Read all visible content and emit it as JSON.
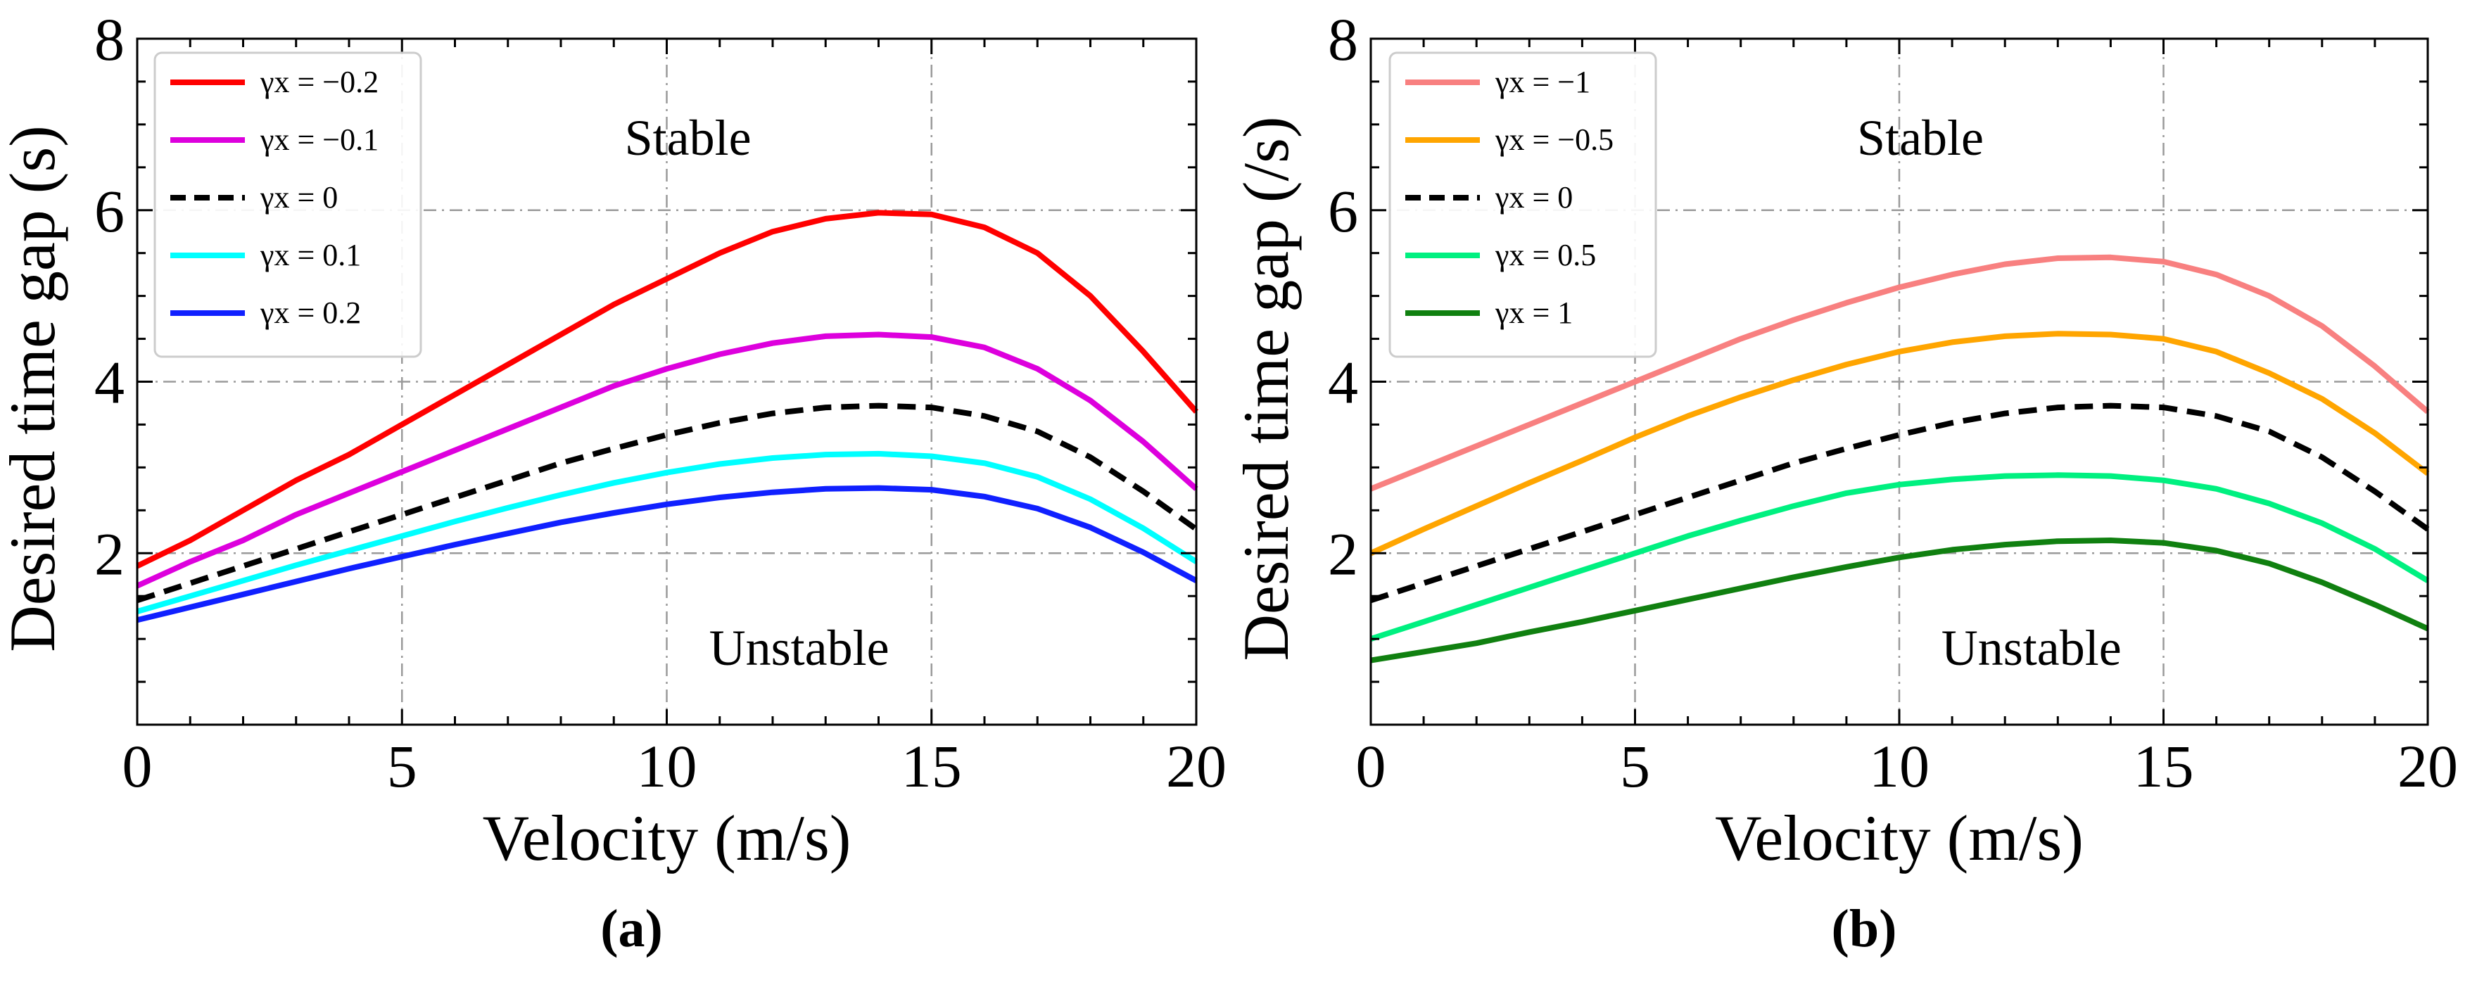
{
  "chart_data": [
    {
      "type": "line",
      "panel_label": "(a)",
      "panel_letter": "a",
      "xlabel": "Velocity (m/s)",
      "ylabel": "Desired time gap (s)",
      "xlim": [
        0,
        20
      ],
      "ylim": [
        0,
        8
      ],
      "xticks": [
        0,
        5,
        10,
        15,
        20
      ],
      "yticks": [
        2,
        4,
        6,
        8
      ],
      "grid": true,
      "legend_position": "top-left",
      "regions": {
        "stable": "Stable",
        "unstable": "Unstable"
      },
      "x": [
        0,
        1,
        2,
        3,
        4,
        5,
        6,
        7,
        8,
        9,
        10,
        11,
        12,
        13,
        14,
        15,
        16,
        17,
        18,
        19,
        20
      ],
      "series": [
        {
          "name": "γx = −0.2",
          "color": "#ff0000",
          "dash": "solid",
          "values": [
            1.85,
            2.15,
            2.5,
            2.85,
            3.15,
            3.5,
            3.85,
            4.2,
            4.55,
            4.9,
            5.2,
            5.5,
            5.75,
            5.9,
            5.97,
            5.95,
            5.8,
            5.5,
            5.0,
            4.35,
            3.65
          ]
        },
        {
          "name": "γx = −0.1",
          "color": "#dd00dd",
          "dash": "solid",
          "values": [
            1.62,
            1.9,
            2.15,
            2.45,
            2.7,
            2.95,
            3.2,
            3.45,
            3.7,
            3.95,
            4.15,
            4.32,
            4.45,
            4.53,
            4.55,
            4.52,
            4.4,
            4.15,
            3.78,
            3.3,
            2.75
          ]
        },
        {
          "name": "γx = 0",
          "color": "#000000",
          "dash": "dashed",
          "values": [
            1.45,
            1.65,
            1.85,
            2.05,
            2.25,
            2.45,
            2.65,
            2.85,
            3.05,
            3.22,
            3.38,
            3.52,
            3.63,
            3.7,
            3.72,
            3.7,
            3.6,
            3.42,
            3.12,
            2.72,
            2.28
          ]
        },
        {
          "name": "γx = 0.1",
          "color": "#00ffff",
          "dash": "solid",
          "values": [
            1.32,
            1.5,
            1.68,
            1.86,
            2.03,
            2.2,
            2.37,
            2.53,
            2.68,
            2.82,
            2.94,
            3.04,
            3.11,
            3.15,
            3.16,
            3.13,
            3.05,
            2.89,
            2.63,
            2.29,
            1.9
          ]
        },
        {
          "name": "γx = 0.2",
          "color": "#1020ff",
          "dash": "solid",
          "values": [
            1.22,
            1.37,
            1.52,
            1.67,
            1.82,
            1.96,
            2.1,
            2.23,
            2.36,
            2.47,
            2.57,
            2.65,
            2.71,
            2.75,
            2.76,
            2.74,
            2.66,
            2.52,
            2.3,
            2.01,
            1.68
          ]
        }
      ]
    },
    {
      "type": "line",
      "panel_label": "(b)",
      "panel_letter": "b",
      "xlabel": "Velocity (m/s)",
      "ylabel": "Desired time gap (/s)",
      "xlim": [
        0,
        20
      ],
      "ylim": [
        0,
        8
      ],
      "xticks": [
        0,
        5,
        10,
        15,
        20
      ],
      "yticks": [
        2,
        4,
        6,
        8
      ],
      "grid": true,
      "legend_position": "top-left",
      "regions": {
        "stable": "Stable",
        "unstable": "Unstable"
      },
      "x": [
        0,
        1,
        2,
        3,
        4,
        5,
        6,
        7,
        8,
        9,
        10,
        11,
        12,
        13,
        14,
        15,
        16,
        17,
        18,
        19,
        20
      ],
      "series": [
        {
          "name": "γx = −1",
          "color": "#f88080",
          "dash": "solid",
          "values": [
            2.75,
            3.0,
            3.25,
            3.5,
            3.75,
            4.0,
            4.25,
            4.5,
            4.72,
            4.92,
            5.1,
            5.25,
            5.37,
            5.44,
            5.45,
            5.4,
            5.25,
            5.0,
            4.65,
            4.18,
            3.65
          ]
        },
        {
          "name": "γx = −0.5",
          "color": "#ffa500",
          "dash": "solid",
          "values": [
            2.0,
            2.28,
            2.55,
            2.82,
            3.08,
            3.35,
            3.6,
            3.82,
            4.02,
            4.2,
            4.35,
            4.46,
            4.53,
            4.56,
            4.55,
            4.5,
            4.35,
            4.1,
            3.8,
            3.4,
            2.93
          ]
        },
        {
          "name": "γx = 0",
          "color": "#000000",
          "dash": "dashed",
          "values": [
            1.45,
            1.65,
            1.85,
            2.05,
            2.25,
            2.45,
            2.65,
            2.85,
            3.05,
            3.22,
            3.38,
            3.52,
            3.63,
            3.7,
            3.72,
            3.7,
            3.6,
            3.42,
            3.12,
            2.72,
            2.28
          ]
        },
        {
          "name": "γx = 0.5",
          "color": "#00f080",
          "dash": "solid",
          "values": [
            1.0,
            1.2,
            1.4,
            1.6,
            1.8,
            2.0,
            2.2,
            2.38,
            2.55,
            2.7,
            2.8,
            2.86,
            2.9,
            2.91,
            2.9,
            2.85,
            2.75,
            2.58,
            2.35,
            2.05,
            1.68
          ]
        },
        {
          "name": "γx = 1",
          "color": "#108010",
          "dash": "solid",
          "values": [
            0.75,
            0.85,
            0.95,
            1.08,
            1.2,
            1.33,
            1.46,
            1.59,
            1.72,
            1.84,
            1.95,
            2.04,
            2.1,
            2.14,
            2.15,
            2.12,
            2.03,
            1.88,
            1.66,
            1.4,
            1.12
          ]
        }
      ]
    }
  ]
}
